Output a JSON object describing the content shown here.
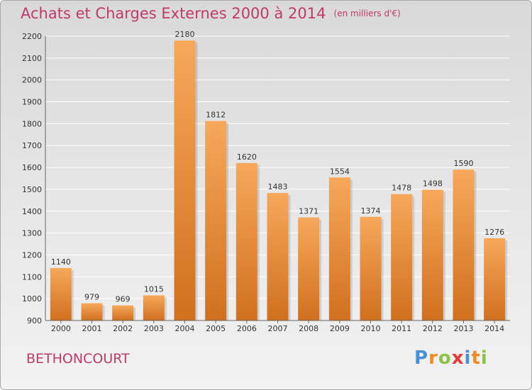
{
  "header": {
    "title": "Achats et Charges Externes 2000 à 2014",
    "unit": "(en milliers d'€)"
  },
  "footer": {
    "commune": "BETHONCOURT",
    "logo_letters": [
      "P",
      "r",
      "o",
      "x",
      "i",
      "t",
      "i"
    ]
  },
  "colors": {
    "title": "#c0396b",
    "bar_top": "#f7a85a",
    "bar_bottom": "#d0701e",
    "grid": "#ffffff",
    "logo": [
      "#4a90d9",
      "#f08a24",
      "#8bc34a",
      "#e53935",
      "#4a90d9",
      "#f08a24",
      "#8bc34a"
    ]
  },
  "chart_data": {
    "type": "bar",
    "title": "Achats et Charges Externes 2000 à 2014",
    "subtitle": "(en milliers d'€)",
    "xlabel": "",
    "ylabel": "",
    "categories": [
      "2000",
      "2001",
      "2002",
      "2003",
      "2004",
      "2005",
      "2006",
      "2007",
      "2008",
      "2009",
      "2010",
      "2011",
      "2012",
      "2013",
      "2014"
    ],
    "values": [
      1140,
      979,
      969,
      1015,
      2180,
      1812,
      1620,
      1483,
      1371,
      1554,
      1374,
      1478,
      1498,
      1590,
      1276
    ],
    "ylim": [
      900,
      2200
    ],
    "yticks": [
      900,
      1000,
      1100,
      1200,
      1300,
      1400,
      1500,
      1600,
      1700,
      1800,
      1900,
      2000,
      2100,
      2200
    ],
    "grid": true,
    "legend": "none"
  }
}
